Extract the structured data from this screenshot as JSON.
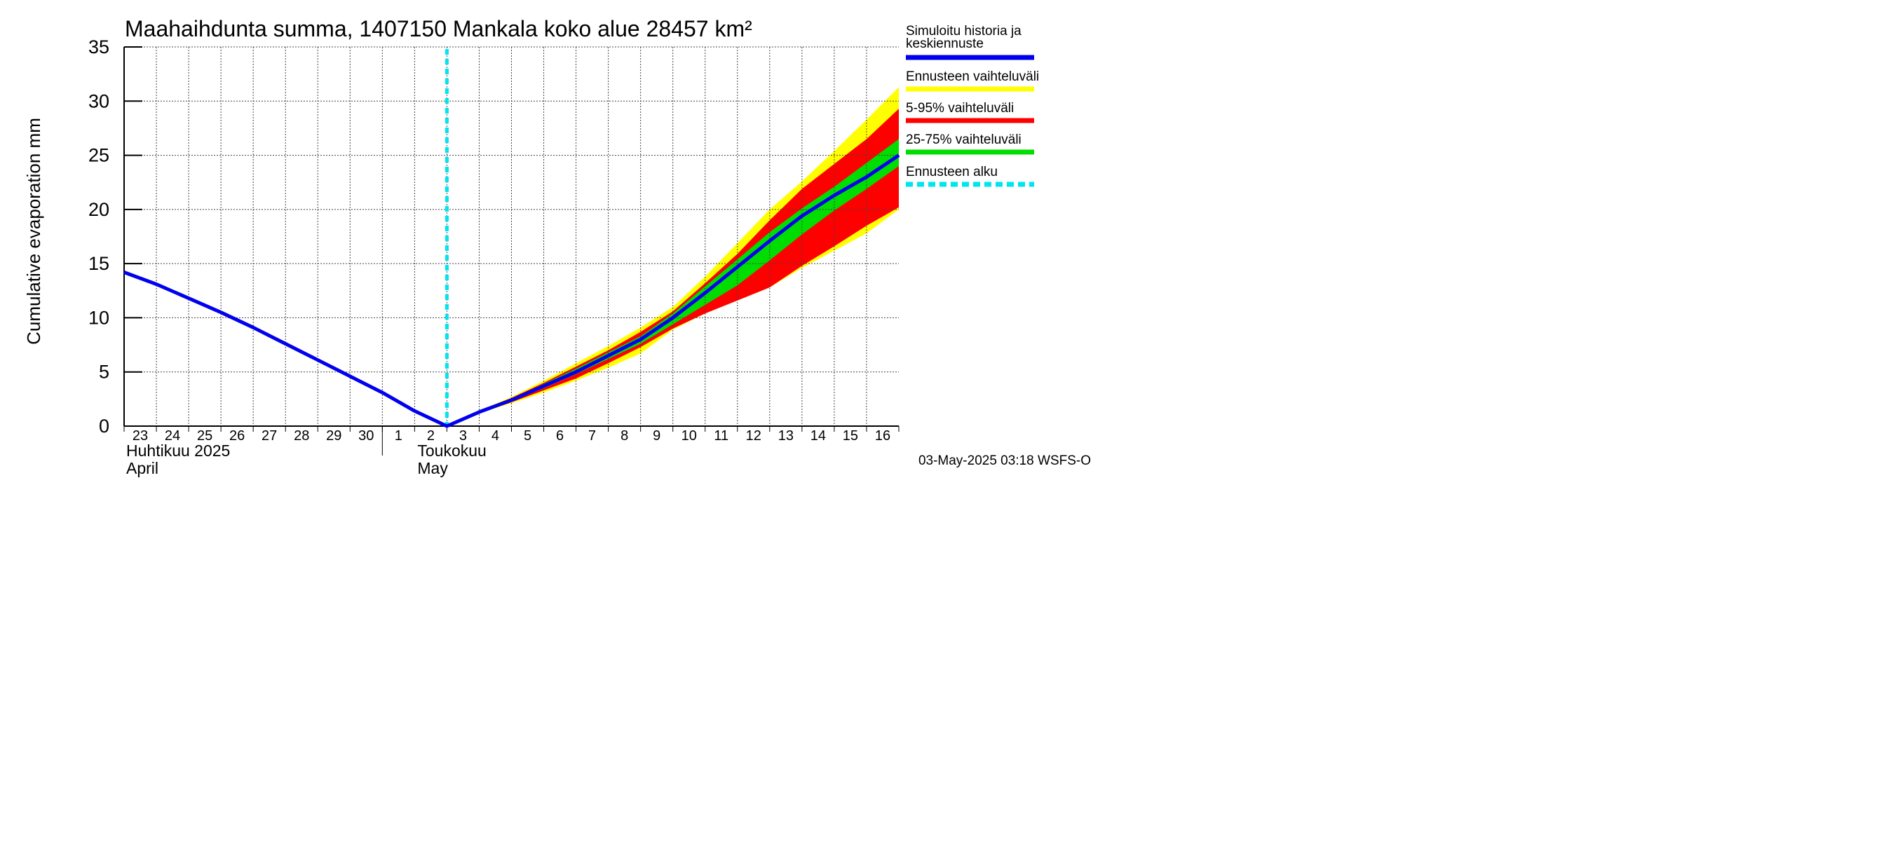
{
  "chart_data": {
    "type": "line",
    "title": "Maahaihdunta summa, 1407150 Mankala koko alue 28457 km²",
    "ylabel": "Cumulative evaporation   mm",
    "ylim": [
      0,
      35
    ],
    "yticks": [
      "0",
      "5",
      "10",
      "15",
      "20",
      "25",
      "30",
      "35"
    ],
    "x_tick_labels": [
      "23",
      "24",
      "25",
      "26",
      "27",
      "28",
      "29",
      "30",
      "1",
      "2",
      "3",
      "4",
      "5",
      "6",
      "7",
      "8",
      "9",
      "10",
      "11",
      "12",
      "13",
      "14",
      "15",
      "16"
    ],
    "month_labels": [
      {
        "fi": "Huhtikuu  2025",
        "en": "April"
      },
      {
        "fi": "Toukokuu",
        "en": "May"
      }
    ],
    "x_range_days": [
      0,
      24
    ],
    "grid": true,
    "forecast_start_day": 10,
    "series": [
      {
        "name": "Simuloitu historia ja keskiennuste",
        "color": "#0000ee",
        "x": [
          0,
          1,
          2,
          3,
          4,
          5,
          6,
          7,
          8,
          9,
          10,
          11,
          12,
          13,
          14,
          15,
          16,
          17,
          18,
          19,
          20,
          21,
          22,
          23,
          24
        ],
        "y": [
          14.2,
          13.1,
          11.8,
          10.5,
          9.1,
          7.6,
          6.1,
          4.6,
          3.1,
          1.4,
          0.0,
          1.3,
          2.4,
          3.7,
          5.0,
          6.5,
          8.0,
          10.0,
          12.3,
          14.7,
          17.1,
          19.4,
          21.3,
          23.0,
          25.0
        ]
      },
      {
        "name": "Ennusteen vaihteluväli",
        "color": "#ffff00",
        "x": [
          10,
          11,
          12,
          13,
          14,
          15,
          16,
          17,
          18,
          19,
          20,
          21,
          22,
          23,
          24
        ],
        "lower": [
          0.0,
          1.2,
          2.1,
          3.1,
          4.2,
          5.4,
          6.7,
          8.9,
          10.4,
          11.6,
          12.8,
          14.6,
          16.2,
          17.8,
          20.0
        ],
        "upper": [
          0.0,
          1.4,
          2.7,
          4.2,
          5.8,
          7.4,
          9.1,
          11.0,
          13.8,
          16.9,
          20.0,
          22.6,
          25.4,
          28.3,
          31.3
        ]
      },
      {
        "name": "5-95% vaihteluväli",
        "color": "#ff0000",
        "x": [
          10,
          11,
          12,
          13,
          14,
          15,
          16,
          17,
          18,
          19,
          20,
          21,
          22,
          23,
          24
        ],
        "lower": [
          0.0,
          1.2,
          2.2,
          3.3,
          4.4,
          5.8,
          7.3,
          9.0,
          10.4,
          11.6,
          12.8,
          14.8,
          16.6,
          18.5,
          20.2
        ],
        "upper": [
          0.0,
          1.4,
          2.6,
          4.0,
          5.5,
          7.0,
          8.7,
          10.6,
          13.2,
          15.9,
          19.0,
          21.9,
          24.2,
          26.5,
          29.3
        ]
      },
      {
        "name": "25-75% vaihteluväli",
        "color": "#00dd00",
        "x": [
          10,
          11,
          12,
          13,
          14,
          15,
          16,
          17,
          18,
          19,
          20,
          21,
          22,
          23,
          24
        ],
        "lower": [
          0.0,
          1.2,
          2.3,
          3.5,
          4.8,
          6.2,
          7.6,
          9.4,
          11.2,
          13.0,
          15.3,
          17.7,
          19.9,
          21.9,
          24.0
        ],
        "upper": [
          0.0,
          1.3,
          2.5,
          3.9,
          5.3,
          6.8,
          8.3,
          10.4,
          12.9,
          15.4,
          17.9,
          20.1,
          22.1,
          24.3,
          26.5
        ]
      }
    ],
    "legend": {
      "position": "right",
      "items": [
        {
          "label": "Simuloitu historia ja keskiennuste",
          "color": "#0000ee",
          "style": "solid"
        },
        {
          "label": "Ennusteen vaihteluväli",
          "color": "#ffff00",
          "style": "solid"
        },
        {
          "label": "5-95% vaihteluväli",
          "color": "#ff0000",
          "style": "solid"
        },
        {
          "label": "25-75% vaihteluväli",
          "color": "#00dd00",
          "style": "solid"
        },
        {
          "label": "Ennusteen alku",
          "color": "#00e5ee",
          "style": "dashed"
        }
      ]
    },
    "footer": "03-May-2025 03:18 WSFS-O"
  }
}
